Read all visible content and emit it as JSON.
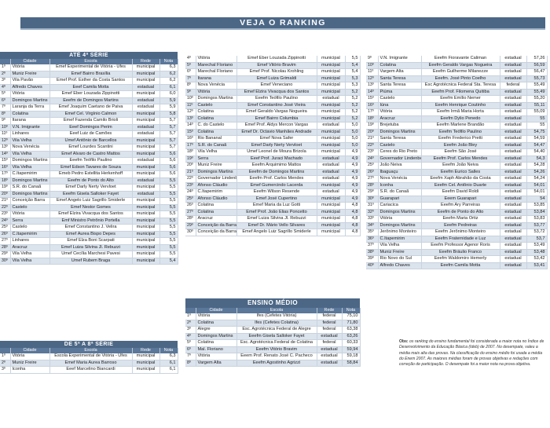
{
  "page": {
    "title": "VEJA O RANKING"
  },
  "headers": {
    "cidade": "Cidade",
    "escola": "Escola",
    "rede": "Rede",
    "nota": "Nota"
  },
  "sections": {
    "s1": {
      "title": "ATÉ 4ª SÉRIE"
    },
    "s2": {
      "title": "DE 5ª A 8ª SÉRIE"
    },
    "s3": {
      "title": "ENSINO MÉDIO"
    }
  },
  "rows1": [
    [
      "1º",
      "Vitória",
      "Emef Experimental de Vitória - Ufes",
      "municipal",
      "6,3"
    ],
    [
      "2º",
      "Muniz Freire",
      "Emef Bairro Brasília",
      "municipal",
      "6,2"
    ],
    [
      "3º",
      "Vila Pavão",
      "Emef Prof. Esther da Costa Santos",
      "municipal",
      "6,2"
    ],
    [
      "4º",
      "Alfredo Chaves",
      "Eeef Camila Motta",
      "estadual",
      "6,1"
    ],
    [
      "5º",
      "Vitória",
      "Emef Eber Louzada Zippinotti",
      "municipal",
      "6,0"
    ],
    [
      "6º",
      "Domingos Martins",
      "Eeefm de Domingos Martins",
      "estadual",
      "5,9"
    ],
    [
      "7º",
      "Laranja da Terra",
      "Emef Joaquim Caetano de Paiva",
      "estadual",
      "5,9"
    ],
    [
      "8º",
      "Colatina",
      "Emef Cel. Virgínio Calmon",
      "municipal",
      "5,8"
    ],
    [
      "9º",
      "Itarana",
      "Emef Fazenda Camilo Brioli",
      "municipal",
      "5,7"
    ],
    [
      "10º",
      "V.N. Imigrante",
      "Eeef Domingos Perim",
      "estadual",
      "5,7"
    ],
    [
      "11º",
      "Linhares",
      "Eeef Luiz de Camões",
      "estadual",
      "5,7"
    ],
    [
      "12º",
      "Vila Velha",
      "Umef Antônio de Barcellos",
      "municipal",
      "5,7"
    ],
    [
      "13º",
      "Nova Venécia",
      "Emef Lourdes Scantini",
      "municipal",
      "5,7"
    ],
    [
      "14º",
      "Vila Velha",
      "Emef Álvaro de Castro Mattos",
      "municipal",
      "5,6"
    ],
    [
      "15º",
      "Domingos Martins",
      "Eeefm Teófilo Paulino",
      "estadual",
      "5,6"
    ],
    [
      "16º",
      "Vila Velha",
      "Emef Edson Tavares de Souza",
      "municipal",
      "5,6"
    ],
    [
      "17º",
      "C.Itapemirim",
      "Emeb Pedro Estellita Herkenhoff",
      "municipal",
      "5,6"
    ],
    [
      "18º",
      "Domingos Martins",
      "Eeefm de Ponto do Alto",
      "estadual",
      "5,5"
    ],
    [
      "19º",
      "S.R. do Canaã",
      "Emef Darly Nerty Vervloet",
      "municipal",
      "5,5"
    ],
    [
      "20º",
      "Domingos Martins",
      "Eeefm Gisela Salloker Fayet",
      "estadual",
      "5,5"
    ],
    [
      "21º",
      "Conceição Barra",
      "Emef Angelo Luiz Sagrillo Smiderle",
      "municipal",
      "5,5"
    ],
    [
      "22º",
      "Castelo",
      "Emef Nestor Gomes",
      "municipal",
      "5,5"
    ],
    [
      "23º",
      "Vitória",
      "Emef Elzira Vivacqua dos Santos",
      "municipal",
      "5,5"
    ],
    [
      "24º",
      "Serra",
      "Emf Ministro Petrônio Portella",
      "municipal",
      "5,5"
    ],
    [
      "25º",
      "Castelo",
      "Emef Constantino J. Velira",
      "municipal",
      "5,5"
    ],
    [
      "26º",
      "C.Itapemirim",
      "Emef Áurea Bispo Depes",
      "municipal",
      "5,5"
    ],
    [
      "27º",
      "Linhares",
      "Emef Elza Boni Scarpati",
      "municipal",
      "5,5"
    ],
    [
      "28º",
      "Aracruz",
      "Emef Luiza Silvina Jl. Rebuzzi",
      "municipal",
      "5,5"
    ],
    [
      "29º",
      "Vila Velha",
      "Umef Cecília Marchesi Pavesi",
      "municipal",
      "5,5"
    ],
    [
      "30º",
      "Vila Velha",
      "Umef Rubem Braga",
      "municipal",
      "5,4"
    ]
  ],
  "rows2": [
    [
      "4º",
      "Vitória",
      "Emef Eber Louzada Zippinotti",
      "municipal",
      "5,5"
    ],
    [
      "5º",
      "Marechal Floriano",
      "Emef Vitório Bravim",
      "municipal",
      "5,4"
    ],
    [
      "6º",
      "Marechal Floriano",
      "Emef Prof. Nicolau Krohling",
      "municipal",
      "5,4"
    ],
    [
      "7º",
      "Itarana",
      "Emef Luiza Grimaldi",
      "municipal",
      "5,3"
    ],
    [
      "8º",
      "Nova Venécia",
      "Emef Veneciano",
      "municipal",
      "5,3"
    ],
    [
      "9º",
      "Vitória",
      "Emef Elzira Vivacqua dos Santos",
      "municipal",
      "5,2"
    ],
    [
      "10º",
      "Domingos Martins",
      "Eeefm Teófilo Paulino",
      "estadual",
      "5,2"
    ],
    [
      "11º",
      "Castelo",
      "Emef Constantino José Vieira",
      "municipal",
      "5,2"
    ],
    [
      "12º",
      "Colatina",
      "Emef Geraldo Vargas Nogueira",
      "municipal",
      "5,2"
    ],
    [
      "13º",
      "Colatina",
      "Emef Bairro Columbia",
      "municipal",
      "5,2"
    ],
    [
      "14º",
      "C. do Castelo",
      "Emef Prof. Aldys Mercon Vargas",
      "estadual",
      "5,0"
    ],
    [
      "15º",
      "Colatina",
      "Emef Dr. Octavio Manhães Andrade",
      "municipal",
      "5,0"
    ],
    [
      "16º",
      "Rio Bananal",
      "Emef Nova Safer",
      "municipal",
      "5,0"
    ],
    [
      "17º",
      "S.R. do Canaã",
      "Emef Darly Nerty Vervloet",
      "municipal",
      "5,0"
    ],
    [
      "18º",
      "Vila Velha",
      "Umef Leonel de Moura Brizola",
      "municipal",
      "4,9"
    ],
    [
      "19º",
      "Serra",
      "Eeef Prof. Juraci Machado",
      "estadual",
      "4,9"
    ],
    [
      "20º",
      "Muniz Freire",
      "Eeefm Arquimimo Mattos",
      "estadual",
      "4,9"
    ],
    [
      "21º",
      "Domingos Martins",
      "Eeefm de Domingos Martins",
      "estadual",
      "4,9"
    ],
    [
      "22º",
      "Governador Lindenberg",
      "Eeefm Prof. Carlos Mendes",
      "estadual",
      "4,9"
    ],
    [
      "23º",
      "Afonso Cláudio",
      "Emef Gumercindo Lacerda",
      "municipal",
      "4,9"
    ],
    [
      "24º",
      "C.Itapemirim",
      "Eeefm Wilson Resende",
      "estadual",
      "4,9"
    ],
    [
      "25º",
      "Afonso Cláudio",
      "Emef José Cupertino",
      "municipal",
      "4,9"
    ],
    [
      "26º",
      "Colatina",
      "Emef Maria da Luz Gotti",
      "municipal",
      "4,8"
    ],
    [
      "27º",
      "Colatina",
      "Emef Prof. João Elias Poncetto",
      "municipal",
      "4,8"
    ],
    [
      "28º",
      "Aracruz",
      "Emef Luiza Silvina Jl. Rebuzzi",
      "municipal",
      "4,8"
    ],
    [
      "29º",
      "Conceição da Barra",
      "Emef Dr. Mário Vello Silvares",
      "municipal",
      "4,8"
    ],
    [
      "30º",
      "Conceição da Barra",
      "Emef Angelo Luiz Sagrillo Smiderle",
      "municipal",
      "4,8"
    ]
  ],
  "rows3": [
    [
      "9º",
      "V.N. Imigrante",
      "Eeefm Fioravante Caliman",
      "estadual",
      "57,26"
    ],
    [
      "10º",
      "Colatina",
      "Eeefm Geraldo Vargas Nogueira",
      "estadual",
      "56,59"
    ],
    [
      "11º",
      "Vargem Alta",
      "Eeefm Guilherme Milanezze",
      "estadual",
      "56,47"
    ],
    [
      "12º",
      "Santa Teresa",
      "Eeefm. José Pinto Coelho",
      "estadual",
      "55,73"
    ],
    [
      "13º",
      "Santa Teresa",
      "Esc Agrotécnica Federal Sta. Teresa",
      "federal",
      "55,49"
    ],
    [
      "14º",
      "Piúma",
      "Eeefm Prof. Filomena Quitiba",
      "estadual",
      "55,49"
    ],
    [
      "15º",
      "Castelo",
      "Eeefm Emílio Nemer",
      "estadual",
      "55,20"
    ],
    [
      "16º",
      "Iúna",
      "Eeefm Henrique Coutinho",
      "estadual",
      "55,11"
    ],
    [
      "17º",
      "Vitória",
      "Eeefm Irmã Maria Horta",
      "estadual",
      "55,09"
    ],
    [
      "18º",
      "Aracruz",
      "Eeefm Dylio Penedo",
      "estadual",
      "55"
    ],
    [
      "19º",
      "Brejetuba",
      "Eeefm Marlene Brandão",
      "estadual",
      "55"
    ],
    [
      "20º",
      "Domingos Martins",
      "Eeefm Teófilo Paulino",
      "estadual",
      "54,75"
    ],
    [
      "21º",
      "Santa Teresa",
      "Eeefm Frederico Pretti",
      "estadual",
      "54,59"
    ],
    [
      "22º",
      "Castelo",
      "Eeefm João Bley",
      "estadual",
      "54,47"
    ],
    [
      "23º",
      "Ceres do Rio Preto",
      "Eeefm São José",
      "estadual",
      "54,40"
    ],
    [
      "24º",
      "Governador Lindenberg",
      "Eeefm Prof. Carlos Mendes",
      "estadual",
      "54,3"
    ],
    [
      "25º",
      "João Neiva",
      "Eeefm João Neiva",
      "estadual",
      "54,28"
    ],
    [
      "26º",
      "Ibaguaçu",
      "Eeefm Eurico Salles",
      "estadual",
      "54,26"
    ],
    [
      "27º",
      "Nova Venécia",
      "Eeefm Xaph Abrahão da Costa",
      "estadual",
      "54,24"
    ],
    [
      "28º",
      "Iconha",
      "Eeefm Cel. Antônio Duarte",
      "estadual",
      "54,01"
    ],
    [
      "29º",
      "S.R. do Canaã",
      "Eeefm David Roldi",
      "estadual",
      "54,01"
    ],
    [
      "30º",
      "Guarapari",
      "Eeem Guarapari",
      "estadual",
      "54"
    ],
    [
      "31º",
      "Cariacica",
      "Eeefm Ary Parreiras",
      "estadual",
      "53,85"
    ],
    [
      "32º",
      "Domingos Martins",
      "Eeefm de Ponto do Alto",
      "estadual",
      "53,84"
    ],
    [
      "33º",
      "Vitória",
      "Eeefm Maria Ortiz",
      "estadual",
      "53,83"
    ],
    [
      "34º",
      "Domingos Martins",
      "Eeefm Pedreiras",
      "estadual",
      "53,77"
    ],
    [
      "35º",
      "Jerônimo Monteiro",
      "Eeefm Jerônimo Monteiro",
      "estadual",
      "53,72"
    ],
    [
      "36º",
      "C.Itapemirim",
      "Eeefm Fraternidade e Luz",
      "estadual",
      "53,7"
    ],
    [
      "37º",
      "Vila Velha",
      "Eeefm Professor Agenor Roris",
      "estadual",
      "53,49"
    ],
    [
      "38º",
      "Muniz Freire",
      "Eeefm Bráulio Franco",
      "estadual",
      "53,48"
    ],
    [
      "39º",
      "Rio Novo do Sul",
      "Eeefm Waldomiro Hemerly",
      "estadual",
      "53,42"
    ],
    [
      "40º",
      "Alfredo Chaves",
      "Eeefm Camila Motta",
      "estadual",
      "53,41"
    ]
  ],
  "rows4": [
    [
      "1º",
      "Vitória",
      "Escola Experimental de Vitória - Ufes",
      "municipal",
      "6,3"
    ],
    [
      "2º",
      "Muniz Freire",
      "Emef Maria Aurea Barroso",
      "municipal",
      "6,1"
    ],
    [
      "3º",
      "Iconha",
      "Eeef Marcelino Biancardi",
      "municipal",
      "6,1"
    ]
  ],
  "rows5": [
    [
      "1º",
      "Vitória",
      "Ifes (Cefetes Vitória)",
      "federal",
      "75,10"
    ],
    [
      "2º",
      "Colatina",
      "Ifes (Cefetes Colatina)",
      "federal",
      "71,80"
    ],
    [
      "3º",
      "Alegre",
      "Esc. Agrotécnica Federal de Alegre",
      "federal",
      "63,38"
    ],
    [
      "4º",
      "Domingos Martins",
      "Eeefm Gisela Salloker Fayet",
      "estadual",
      "63,26"
    ],
    [
      "5º",
      "Colatina",
      "Esc. Agrotécnica Federal de Colatina",
      "federal",
      "60,33"
    ],
    [
      "6º",
      "Mal. Floriano",
      "Eeefm Vitório Bravim",
      "estadual",
      "59,94"
    ],
    [
      "7º",
      "Vitória",
      "Eeem Prof. Renato José C. Pacheco",
      "estadual",
      "59,18"
    ],
    [
      "8º",
      "Vargem Alta",
      "Eeefm Agostinho Agrizzi",
      "estadual",
      "58,84"
    ]
  ],
  "obs": {
    "label": "Obs:",
    "text": "os ranking do ensino fundamental foi considerada a maior nota no Índice de Desenvolvimento da Educação Básica (Ideb) de 2007. No desempate, valeu a média mais alta das provas. Na classificação do ensino médio foi usada a média do Enem 2007. As maiores médias foram de provas objetivas e redações com correção de participação. O desempate foi a maior nota na prova objetiva."
  },
  "colors": {
    "banner": "#4c6786",
    "header": "#5b7799",
    "stripe": "#dbe3ed"
  }
}
